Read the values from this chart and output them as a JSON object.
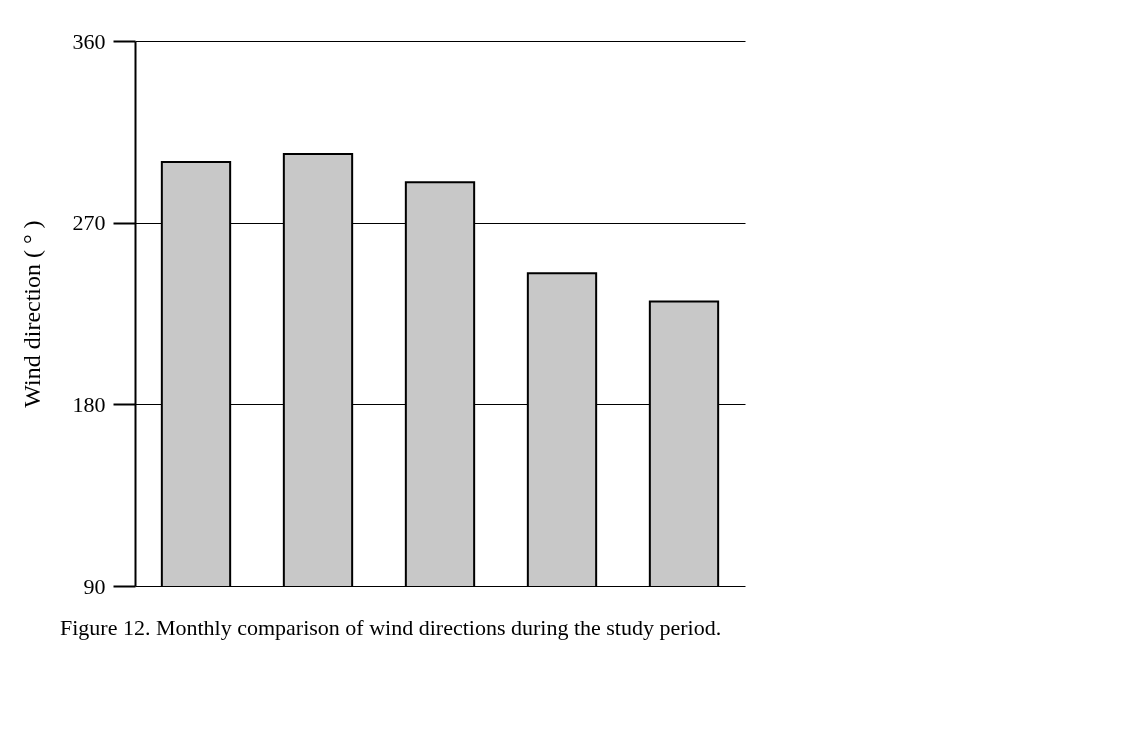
{
  "chart_data": {
    "type": "bar",
    "ylabel": "Wind direction ( ° )",
    "categories": [
      null,
      null,
      null,
      null,
      null
    ],
    "values": [
      300,
      304,
      290,
      245,
      231
    ],
    "color": "#c8c8c8",
    "ylim": [
      90,
      360
    ],
    "yticks": [
      90,
      180,
      270,
      360
    ],
    "grid": "y",
    "tick_labels": "y",
    "annotations": [
      "Figure 12. Monthly comparison of wind directions during the study period."
    ]
  }
}
